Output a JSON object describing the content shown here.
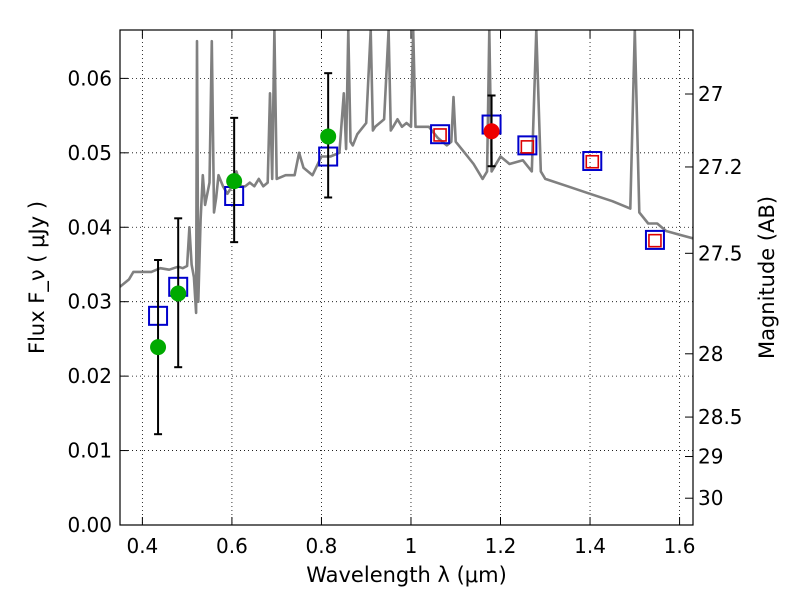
{
  "chart_data": {
    "type": "scatter",
    "title": "",
    "xlabel": "Wavelength  λ (μm)",
    "ylabel_left": "Flux  F_ν  ( μJy )",
    "ylabel_right": "Magnitude (AB)",
    "xlim": [
      0.35,
      1.63
    ],
    "ylim": [
      0.0,
      0.0665
    ],
    "x_ticks": [
      0.4,
      0.6,
      0.8,
      1.0,
      1.2,
      1.4,
      1.6
    ],
    "x_tick_labels": [
      "0.4",
      "0.6",
      "0.8",
      "1",
      "1.2",
      "1.4",
      "1.6"
    ],
    "y_ticks": [
      0.0,
      0.01,
      0.02,
      0.03,
      0.04,
      0.05,
      0.06
    ],
    "y_tick_labels": [
      "0.00",
      "0.01",
      "0.02",
      "0.03",
      "0.04",
      "0.05",
      "0.06"
    ],
    "right_ticks": [
      {
        "flux": 0.0579,
        "label": "27"
      },
      {
        "flux": 0.0481,
        "label": "27.2"
      },
      {
        "flux": 0.0365,
        "label": "27.5"
      },
      {
        "flux": 0.023,
        "label": "28"
      },
      {
        "flux": 0.0145,
        "label": "28.5"
      },
      {
        "flux": 0.0092,
        "label": "29"
      },
      {
        "flux": 0.0036,
        "label": "30"
      }
    ],
    "grid": true,
    "colors": {
      "spectrum": "#808080",
      "green_points": "#00aa00",
      "red_points": "#ee0000",
      "blue_squares": "#0000cc",
      "red_squares": "#dd0000",
      "error_bars": "#000000"
    },
    "series": [
      {
        "name": "model spectrum",
        "style": "line",
        "x": [
          0.35,
          0.37,
          0.38,
          0.4,
          0.42,
          0.44,
          0.46,
          0.48,
          0.49,
          0.5,
          0.505,
          0.51,
          0.515,
          0.52,
          0.522,
          0.525,
          0.53,
          0.535,
          0.54,
          0.55,
          0.555,
          0.56,
          0.565,
          0.57,
          0.58,
          0.59,
          0.6,
          0.61,
          0.62,
          0.63,
          0.64,
          0.65,
          0.66,
          0.67,
          0.68,
          0.685,
          0.69,
          0.695,
          0.7,
          0.72,
          0.74,
          0.75,
          0.76,
          0.78,
          0.8,
          0.82,
          0.84,
          0.85,
          0.855,
          0.86,
          0.865,
          0.87,
          0.88,
          0.9,
          0.91,
          0.915,
          0.92,
          0.94,
          0.95,
          0.955,
          0.96,
          0.97,
          0.98,
          0.99,
          1.0,
          1.005,
          1.01,
          1.02,
          1.04,
          1.06,
          1.08,
          1.09,
          1.095,
          1.1,
          1.12,
          1.14,
          1.16,
          1.17,
          1.175,
          1.18,
          1.2,
          1.22,
          1.25,
          1.27,
          1.28,
          1.29,
          1.3,
          1.35,
          1.4,
          1.45,
          1.49,
          1.5,
          1.51,
          1.53,
          1.55,
          1.57,
          1.6,
          1.63
        ],
        "y": [
          0.032,
          0.033,
          0.034,
          0.034,
          0.034,
          0.0345,
          0.0343,
          0.0347,
          0.0345,
          0.0348,
          0.04,
          0.035,
          0.0333,
          0.0285,
          0.065,
          0.03,
          0.041,
          0.047,
          0.043,
          0.046,
          0.065,
          0.042,
          0.044,
          0.047,
          0.0455,
          0.0445,
          0.0455,
          0.0475,
          0.0455,
          0.0455,
          0.046,
          0.0455,
          0.0465,
          0.0455,
          0.046,
          0.058,
          0.0465,
          0.0665,
          0.0465,
          0.047,
          0.047,
          0.05,
          0.048,
          0.047,
          0.0495,
          0.0495,
          0.05,
          0.058,
          0.0505,
          0.0665,
          0.0515,
          0.051,
          0.0525,
          0.054,
          0.0665,
          0.053,
          0.0535,
          0.0545,
          0.0665,
          0.053,
          0.0535,
          0.0545,
          0.0535,
          0.054,
          0.0535,
          0.0665,
          0.0535,
          0.0535,
          0.0535,
          0.052,
          0.051,
          0.0515,
          0.0575,
          0.0515,
          0.05,
          0.0485,
          0.0465,
          0.0475,
          0.0665,
          0.0475,
          0.0495,
          0.0485,
          0.049,
          0.0475,
          0.0665,
          0.0475,
          0.0465,
          0.0455,
          0.0445,
          0.0435,
          0.0425,
          0.0665,
          0.042,
          0.0405,
          0.0405,
          0.0395,
          0.039,
          0.0385
        ]
      },
      {
        "name": "observed (green)",
        "style": "points",
        "x": [
          0.435,
          0.48,
          0.605,
          0.815
        ],
        "y": [
          0.0239,
          0.0311,
          0.0462,
          0.0522
        ],
        "yerr_low": [
          0.0117,
          0.0099,
          0.0082,
          0.0082
        ],
        "yerr_high": [
          0.0117,
          0.0101,
          0.0085,
          0.0085
        ]
      },
      {
        "name": "observed (red)",
        "style": "points",
        "x": [
          1.18
        ],
        "y": [
          0.0529
        ],
        "yerr_low": [
          0.0047
        ],
        "yerr_high": [
          0.0048
        ]
      },
      {
        "name": "model photometry (blue squares)",
        "style": "open-square",
        "x": [
          0.435,
          0.48,
          0.605,
          0.815,
          1.065,
          1.18,
          1.26,
          1.405,
          1.545
        ],
        "y": [
          0.0281,
          0.032,
          0.0442,
          0.0495,
          0.0525,
          0.0538,
          0.051,
          0.0489,
          0.0383
        ]
      },
      {
        "name": "red squares",
        "style": "open-square-small",
        "x": [
          1.065,
          1.26,
          1.405,
          1.545
        ],
        "y": [
          0.0524,
          0.0508,
          0.0488,
          0.0382
        ]
      }
    ]
  }
}
